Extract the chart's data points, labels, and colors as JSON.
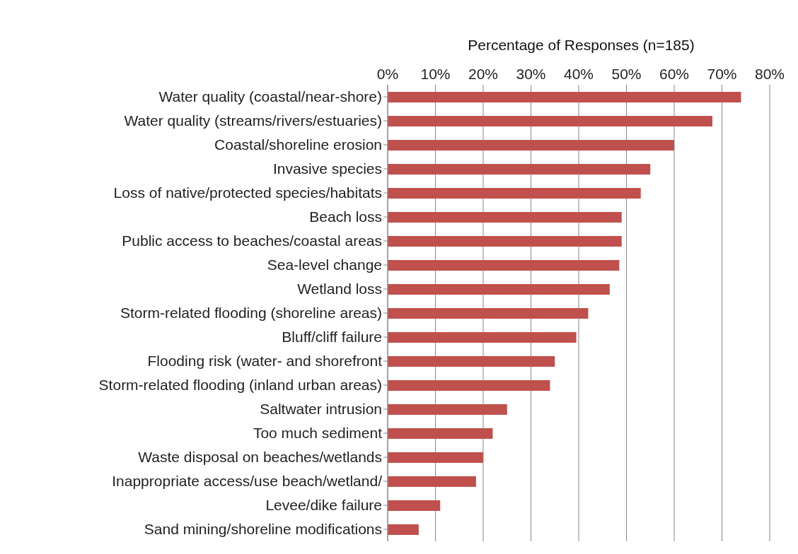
{
  "chart_data": {
    "type": "bar",
    "orientation": "horizontal",
    "xlabel": "Percentage of Responses (n=185)",
    "categories": [
      "Water quality (coastal/near-shore)",
      "Water quality (streams/rivers/estuaries)",
      "Coastal/shoreline erosion",
      "Invasive species",
      "Loss of native/protected species/habitats",
      "Beach loss",
      "Public access to beaches/coastal areas",
      "Sea-level change",
      "Wetland loss",
      "Storm-related flooding (shoreline areas)",
      "Bluff/cliff failure",
      "Flooding risk (water- and shorefront",
      "Storm-related flooding (inland urban areas)",
      "Saltwater intrusion",
      "Too much sediment",
      "Waste disposal on beaches/wetlands",
      "Inappropriate access/use beach/wetland/",
      "Levee/dike failure",
      "Sand mining/shoreline modifications"
    ],
    "values": [
      74,
      68,
      60,
      55,
      53,
      49,
      49,
      48.5,
      46.5,
      42,
      39.5,
      35,
      34,
      25,
      22,
      20,
      18.5,
      11,
      6.5
    ],
    "color": "#c0504d",
    "xlim": [
      0,
      80
    ],
    "xticks": [
      {
        "value": 0,
        "label": "0%"
      },
      {
        "value": 10,
        "label": "10%"
      },
      {
        "value": 20,
        "label": "20%"
      },
      {
        "value": 30,
        "label": "30%"
      },
      {
        "value": 40,
        "label": "40%"
      },
      {
        "value": 50,
        "label": "50%"
      },
      {
        "value": 60,
        "label": "60%"
      },
      {
        "value": 70,
        "label": "70%"
      },
      {
        "value": 80,
        "label": "80%"
      }
    ],
    "grid": "x"
  }
}
